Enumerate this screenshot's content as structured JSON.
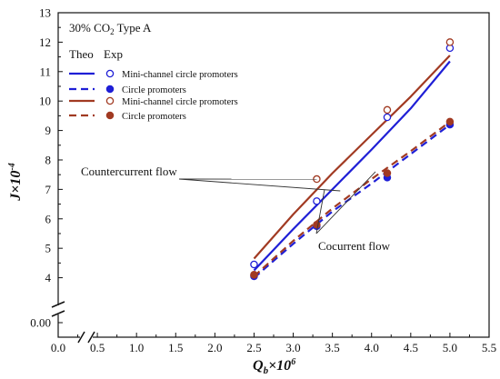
{
  "chart_data": {
    "type": "line",
    "annotation_title": {
      "main": "30% CO",
      "sub": "2",
      "tail": "Type A"
    },
    "legend_headers": {
      "theo": "Theo",
      "exp": "Exp"
    },
    "xlabel": {
      "main": "Q",
      "sub": "b",
      "mid": "×10",
      "sup": "6"
    },
    "ylabel": {
      "main": "J",
      "mid": "×10",
      "sup": "-4"
    },
    "x_ticks": [
      "0.0",
      "0.5",
      "1.0",
      "1.5",
      "2.0",
      "2.5",
      "3.0",
      "3.5",
      "4.0",
      "4.5",
      "5.0",
      "5.5"
    ],
    "y_ticks_upper": [
      "4",
      "5",
      "6",
      "7",
      "8",
      "9",
      "10",
      "11",
      "12",
      "13"
    ],
    "y_ticks_lower": [
      "0.00"
    ],
    "xlim": [
      0,
      5.5
    ],
    "ylim_upper": [
      3.4,
      13
    ],
    "axis_break": {
      "x_between": [
        0.5,
        1.0
      ],
      "y_between": [
        0.0,
        3.4
      ]
    },
    "series": [
      {
        "name": "Mini-channel circle promoters",
        "color": "#1f1fd6",
        "line_style": "solid",
        "marker": "open-circle",
        "theory": {
          "x": [
            2.5,
            3.0,
            3.5,
            4.0,
            4.5,
            5.0
          ],
          "y": [
            4.25,
            5.65,
            7.0,
            8.35,
            9.75,
            11.35
          ]
        },
        "experiment": {
          "x": [
            2.5,
            3.3,
            4.2,
            5.0
          ],
          "y": [
            4.45,
            6.6,
            9.45,
            11.8
          ]
        }
      },
      {
        "name": "Circle promoters",
        "color": "#1f1fd6",
        "line_style": "dashed",
        "marker": "filled-circle",
        "theory": {
          "x": [
            2.5,
            3.0,
            3.5,
            4.0,
            4.5,
            5.0
          ],
          "y": [
            4.0,
            5.15,
            6.25,
            7.2,
            8.2,
            9.2
          ]
        },
        "experiment": {
          "x": [
            2.5,
            3.3,
            4.2,
            5.0
          ],
          "y": [
            4.05,
            5.75,
            7.4,
            9.2
          ]
        }
      },
      {
        "name": "Mini-channel circle promoters",
        "color": "#a13a22",
        "line_style": "solid",
        "marker": "open-circle",
        "theory": {
          "x": [
            2.5,
            3.0,
            3.5,
            4.0,
            4.5,
            5.0
          ],
          "y": [
            4.65,
            6.15,
            7.55,
            8.85,
            10.15,
            11.55
          ]
        },
        "experiment": {
          "x": [
            2.5,
            3.3,
            4.2,
            5.0
          ],
          "y": [
            4.1,
            7.35,
            9.7,
            12.0
          ]
        }
      },
      {
        "name": "Circle promoters",
        "color": "#a13a22",
        "line_style": "dashed",
        "marker": "filled-circle",
        "theory": {
          "x": [
            2.5,
            3.0,
            3.5,
            4.0,
            4.5,
            5.0
          ],
          "y": [
            4.05,
            5.25,
            6.35,
            7.35,
            8.3,
            9.3
          ]
        },
        "experiment": {
          "x": [
            2.5,
            3.3,
            4.2,
            5.0
          ],
          "y": [
            4.1,
            5.8,
            7.55,
            9.3
          ]
        }
      }
    ],
    "annotations": [
      {
        "text": "Countercurrent flow",
        "points_to": [
          [
            3.3,
            7.35
          ],
          [
            3.6,
            6.95
          ]
        ]
      },
      {
        "text": "Cocurrent flow",
        "points_to": [
          [
            3.4,
            7.0
          ],
          [
            4.05,
            7.6
          ]
        ]
      }
    ],
    "grid": false,
    "legend_position": "top-left"
  }
}
